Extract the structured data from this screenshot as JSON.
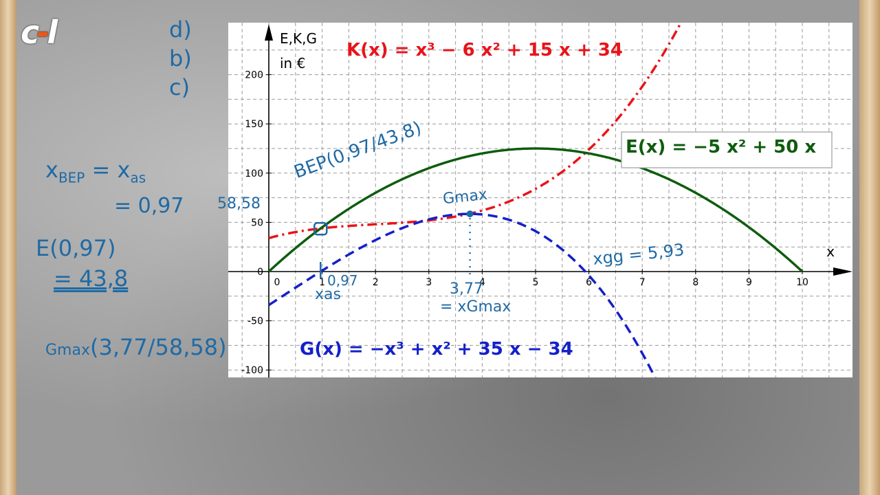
{
  "logo": {
    "text_a": "c",
    "text_dash": "-",
    "text_b": "l"
  },
  "handwriting": {
    "list_d": "d)",
    "list_b": "b)",
    "list_c": "c)",
    "xbep_eq": "x",
    "xbep_sub": "BEP",
    "xbep_rhs": "= x",
    "xbep_rhs_sub": "as",
    "eq_097": "= 0,97",
    "e_097": "E(0,97)",
    "e_value": "= 43,8",
    "gmax_label": "Gmax",
    "gmax_point": "(3,77/58,58)",
    "bep_label": "BEP(0,97/43,8)",
    "gmax_on_chart": "Gmax",
    "val_5858": "58,58",
    "val_097": "0,97",
    "xas_below": "xas",
    "val_377": "3,77",
    "xgmax": "= xGmax",
    "xgg_label": "xgg = 5,93"
  },
  "colors": {
    "cost": "#e8141a",
    "revenue": "#0e5c0e",
    "profit": "#1420c8",
    "handwriting": "#1f6aa5"
  },
  "chart_data": {
    "type": "line",
    "xlim": [
      0,
      10
    ],
    "ylim": [
      -100,
      200
    ],
    "x_ticks": [
      "0",
      "1",
      "2",
      "3",
      "4",
      "5",
      "6",
      "7",
      "8",
      "9",
      "10"
    ],
    "y_ticks": [
      "-100",
      "-50",
      "0",
      "50",
      "100",
      "150",
      "200"
    ],
    "y_tick_values": [
      -100,
      -50,
      0,
      50,
      100,
      150,
      200
    ],
    "x_tick_values": [
      0,
      1,
      2,
      3,
      4,
      5,
      6,
      7,
      8,
      9,
      10
    ],
    "xlabel": "x",
    "ylabel_line1": "E,K,G",
    "ylabel_line2": "in €",
    "grid": true,
    "series": [
      {
        "name": "K(x) = x³ − 6 x² + 15 x + 34",
        "label": "K(x)  =  x³ − 6 x² + 15 x + 34",
        "key": "cost",
        "style": "dashdot",
        "coeffs": [
          34,
          15,
          -6,
          1
        ]
      },
      {
        "name": "E(x) = −5 x² + 50 x",
        "label": "E(x)  =  −5 x² + 50 x",
        "key": "revenue",
        "style": "solid",
        "coeffs": [
          0,
          50,
          -5,
          0
        ]
      },
      {
        "name": "G(x) = −x³ + x² + 35 x − 34",
        "label": "G(x)  =  −x³ + x² + 35 x − 34",
        "key": "profit",
        "style": "dashed",
        "coeffs": [
          -34,
          35,
          1,
          -1
        ]
      }
    ],
    "points": [
      {
        "name": "BEP",
        "x": 0.97,
        "y": 43.8
      },
      {
        "name": "Gmax",
        "x": 3.77,
        "y": 58.58
      }
    ]
  }
}
